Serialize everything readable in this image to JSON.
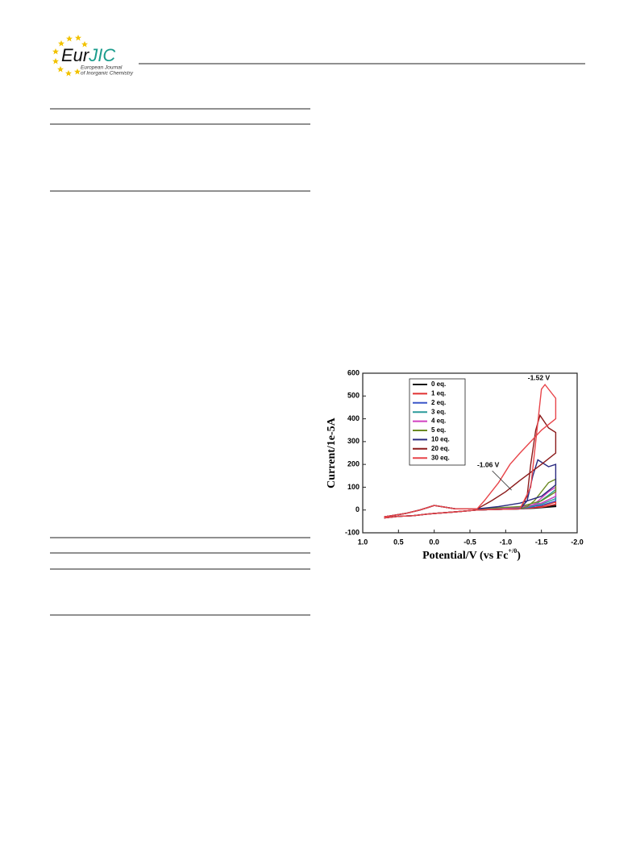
{
  "header": {
    "logo_main": "Eur",
    "logo_accent": "JIC",
    "logo_line1": "European Journal",
    "logo_line2": "of Inorganic Chemistry"
  },
  "chart_data": {
    "type": "line",
    "ylabel": "Current/1e-5A",
    "xlabel": "Potential/V (vs Fc",
    "xlabel_sup": "+/0",
    "xlabel_end": ")",
    "xlim": [
      1.0,
      -2.0
    ],
    "ylim": [
      -100,
      600
    ],
    "xticks": [
      {
        "value": 1.0,
        "label": "1.0"
      },
      {
        "value": 0.5,
        "label": "0.5"
      },
      {
        "value": 0.0,
        "label": "0.0"
      },
      {
        "value": -0.5,
        "label": "-0.5"
      },
      {
        "value": -1.0,
        "label": "-1.0"
      },
      {
        "value": -1.5,
        "label": "-1.5"
      },
      {
        "value": -2.0,
        "label": "-2.0"
      }
    ],
    "yticks": [
      -100,
      0,
      100,
      200,
      300,
      400,
      500,
      600
    ],
    "annotations": [
      {
        "text": "-1.52 V",
        "x": -1.52,
        "y": 550
      },
      {
        "text": "-1.06 V",
        "x": -1.06,
        "y": 200
      }
    ],
    "series": [
      {
        "name": "0 eq.",
        "color": "#111111",
        "x": [
          0.7,
          0.5,
          0.3,
          0.1,
          0.0,
          -0.3,
          -0.6,
          -0.9,
          -1.2,
          -1.4,
          -1.7,
          -1.7,
          -1.4,
          -1.0,
          -0.6,
          -0.3,
          0.0,
          0.1,
          0.2,
          0.4,
          0.6,
          0.7
        ],
        "values": [
          -35,
          -28,
          -25,
          -18,
          -15,
          -8,
          0,
          3,
          5,
          8,
          15,
          20,
          10,
          8,
          5,
          5,
          20,
          10,
          0,
          -15,
          -25,
          -30
        ]
      },
      {
        "name": "1 eq.",
        "color": "#e03030",
        "x": [
          0.7,
          0.5,
          0.3,
          0.1,
          0.0,
          -0.3,
          -0.6,
          -0.9,
          -1.2,
          -1.4,
          -1.6,
          -1.7,
          -1.7,
          -1.5,
          -1.2,
          -0.6,
          -0.3,
          0.0,
          0.1,
          0.2,
          0.4,
          0.6,
          0.7
        ],
        "values": [
          -35,
          -28,
          -25,
          -18,
          -15,
          -8,
          0,
          3,
          5,
          10,
          25,
          35,
          25,
          12,
          8,
          5,
          5,
          20,
          10,
          0,
          -15,
          -25,
          -30
        ]
      },
      {
        "name": "2 eq.",
        "color": "#3a56c8",
        "x": [
          0.7,
          0.5,
          0.3,
          0.1,
          0.0,
          -0.3,
          -0.6,
          -0.9,
          -1.2,
          -1.4,
          -1.6,
          -1.7,
          -1.7,
          -1.5,
          -1.2,
          -0.6,
          -0.3,
          0.0,
          0.1,
          0.2,
          0.4,
          0.6,
          0.7
        ],
        "values": [
          -35,
          -28,
          -25,
          -18,
          -15,
          -8,
          0,
          3,
          5,
          15,
          45,
          60,
          40,
          20,
          10,
          5,
          5,
          20,
          10,
          0,
          -15,
          -25,
          -30
        ]
      },
      {
        "name": "3 eq.",
        "color": "#2a9a9a",
        "x": [
          0.7,
          0.5,
          0.3,
          0.1,
          0.0,
          -0.3,
          -0.6,
          -0.9,
          -1.2,
          -1.4,
          -1.6,
          -1.7,
          -1.7,
          -1.5,
          -1.2,
          -0.6,
          -0.3,
          0.0,
          0.1,
          0.2,
          0.4,
          0.6,
          0.7
        ],
        "values": [
          -35,
          -28,
          -25,
          -18,
          -15,
          -8,
          0,
          3,
          5,
          20,
          65,
          90,
          50,
          25,
          12,
          5,
          5,
          20,
          10,
          0,
          -15,
          -25,
          -30
        ]
      },
      {
        "name": "4 eq.",
        "color": "#d040c0",
        "x": [
          0.7,
          0.5,
          0.3,
          0.1,
          0.0,
          -0.3,
          -0.6,
          -0.9,
          -1.2,
          -1.4,
          -1.6,
          -1.7,
          -1.7,
          -1.5,
          -1.2,
          -0.6,
          -0.3,
          0.0,
          0.1,
          0.2,
          0.4,
          0.6,
          0.7
        ],
        "values": [
          -35,
          -28,
          -25,
          -18,
          -15,
          -8,
          0,
          3,
          5,
          25,
          80,
          100,
          60,
          30,
          12,
          5,
          5,
          20,
          10,
          0,
          -15,
          -25,
          -30
        ]
      },
      {
        "name": "5 eq.",
        "color": "#6b8a22",
        "x": [
          0.7,
          0.5,
          0.3,
          0.1,
          0.0,
          -0.3,
          -0.6,
          -0.9,
          -1.2,
          -1.3,
          -1.4,
          -1.6,
          -1.7,
          -1.7,
          -1.5,
          -1.2,
          -0.6,
          -0.3,
          0.0,
          0.1,
          0.2,
          0.4,
          0.6,
          0.7
        ],
        "values": [
          -35,
          -28,
          -25,
          -18,
          -15,
          -8,
          0,
          3,
          5,
          15,
          40,
          120,
          135,
          80,
          40,
          15,
          5,
          5,
          20,
          10,
          0,
          -15,
          -25,
          -30
        ]
      },
      {
        "name": "10 eq.",
        "color": "#2a2a80",
        "x": [
          0.7,
          0.5,
          0.3,
          0.1,
          0.0,
          -0.3,
          -0.6,
          -0.9,
          -1.2,
          -1.3,
          -1.38,
          -1.45,
          -1.6,
          -1.7,
          -1.7,
          -1.5,
          -1.2,
          -0.9,
          -0.6,
          -0.3,
          0.0,
          0.1,
          0.2,
          0.4,
          0.6,
          0.7
        ],
        "values": [
          -35,
          -28,
          -25,
          -18,
          -15,
          -8,
          0,
          3,
          5,
          40,
          150,
          220,
          190,
          200,
          110,
          60,
          30,
          15,
          5,
          5,
          20,
          10,
          0,
          -15,
          -25,
          -30
        ]
      },
      {
        "name": "20 eq.",
        "color": "#8b1a1a",
        "x": [
          0.7,
          0.5,
          0.3,
          0.1,
          0.0,
          -0.3,
          -0.6,
          -0.9,
          -1.2,
          -1.3,
          -1.35,
          -1.42,
          -1.48,
          -1.6,
          -1.7,
          -1.7,
          -1.5,
          -1.2,
          -1.0,
          -0.8,
          -0.6,
          -0.3,
          0.0,
          0.1,
          0.2,
          0.4,
          0.6,
          0.7
        ],
        "values": [
          -35,
          -28,
          -25,
          -18,
          -15,
          -8,
          0,
          3,
          5,
          60,
          200,
          350,
          415,
          360,
          340,
          250,
          200,
          130,
          80,
          40,
          5,
          5,
          20,
          10,
          0,
          -15,
          -25,
          -30
        ]
      },
      {
        "name": "30 eq.",
        "color": "#e8454a",
        "x": [
          0.7,
          0.5,
          0.3,
          0.1,
          0.0,
          -0.3,
          -0.6,
          -0.9,
          -1.2,
          -1.35,
          -1.42,
          -1.5,
          -1.55,
          -1.65,
          -1.7,
          -1.7,
          -1.5,
          -1.35,
          -1.2,
          -1.06,
          -0.9,
          -0.7,
          -0.6,
          -0.3,
          0.0,
          0.1,
          0.2,
          0.4,
          0.6,
          0.7
        ],
        "values": [
          -35,
          -28,
          -25,
          -18,
          -15,
          -8,
          0,
          3,
          5,
          100,
          300,
          530,
          550,
          510,
          490,
          400,
          350,
          300,
          250,
          200,
          120,
          40,
          5,
          5,
          20,
          10,
          0,
          -15,
          -25,
          -30
        ]
      }
    ]
  }
}
